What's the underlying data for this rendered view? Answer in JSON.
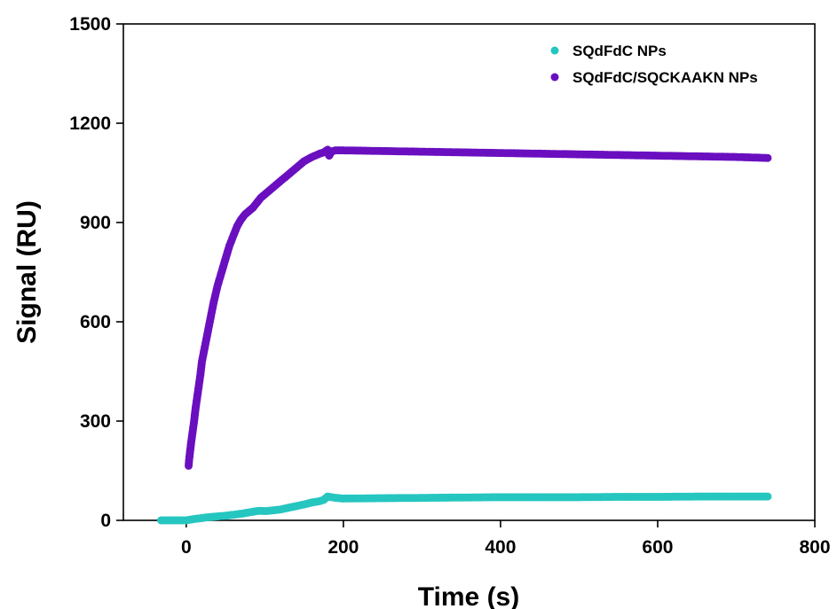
{
  "chart_data": {
    "type": "scatter",
    "title": "",
    "xlabel": "Time (s)",
    "ylabel": "Signal (RU)",
    "xlim": [
      -80,
      800
    ],
    "ylim": [
      0,
      1500
    ],
    "xticks": [
      0,
      200,
      400,
      600,
      800
    ],
    "yticks": [
      0,
      300,
      600,
      900,
      1200,
      1500
    ],
    "grid": false,
    "legend_position": "top-right",
    "series": [
      {
        "name": "SQdFdC NPs",
        "color": "#26C6C0",
        "x": [
          -32,
          -20,
          -10,
          0,
          5,
          10,
          20,
          30,
          40,
          50,
          60,
          70,
          80,
          90,
          95,
          100,
          110,
          120,
          130,
          140,
          150,
          160,
          170,
          175,
          180,
          185,
          190,
          200,
          250,
          300,
          350,
          400,
          450,
          500,
          550,
          600,
          650,
          700,
          740
        ],
        "y": [
          0,
          0,
          0,
          0,
          2,
          4,
          7,
          10,
          12,
          14,
          17,
          20,
          24,
          28,
          29,
          28,
          30,
          33,
          38,
          43,
          48,
          54,
          58,
          62,
          72,
          70,
          68,
          66,
          67,
          68,
          69,
          70,
          70,
          70,
          71,
          71,
          72,
          72,
          72
        ]
      },
      {
        "name": "SQdFdC/SQCKAAKN NPs",
        "color": "#6A0FC0",
        "x": [
          3,
          4,
          5,
          6,
          8,
          10,
          12,
          15,
          18,
          20,
          25,
          30,
          35,
          40,
          45,
          50,
          55,
          60,
          65,
          70,
          75,
          80,
          85,
          90,
          95,
          100,
          110,
          120,
          130,
          140,
          150,
          160,
          170,
          175,
          180,
          182,
          185,
          190,
          200,
          250,
          300,
          350,
          400,
          450,
          500,
          550,
          600,
          650,
          700,
          740
        ],
        "y": [
          165,
          190,
          210,
          230,
          265,
          300,
          340,
          390,
          440,
          480,
          540,
          600,
          660,
          710,
          750,
          790,
          830,
          860,
          890,
          910,
          925,
          935,
          945,
          960,
          975,
          985,
          1005,
          1025,
          1045,
          1065,
          1085,
          1098,
          1108,
          1112,
          1120,
          1102,
          1115,
          1118,
          1118,
          1116,
          1114,
          1112,
          1110,
          1108,
          1106,
          1104,
          1102,
          1100,
          1098,
          1095
        ]
      }
    ]
  }
}
